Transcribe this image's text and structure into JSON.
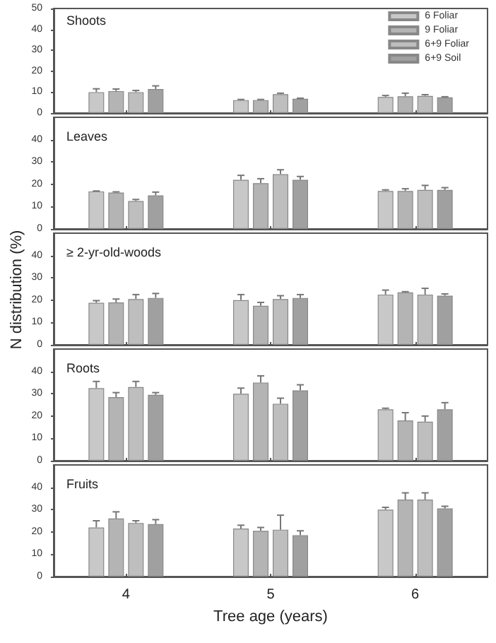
{
  "chart_data": [
    {
      "type": "bar",
      "title": "Shoots",
      "categories": [
        "4",
        "5",
        "6"
      ],
      "ylim": [
        0,
        50
      ],
      "yticks": [
        0,
        10,
        20,
        30,
        40,
        50
      ],
      "legend": "top right",
      "tick_labels": "y",
      "series": [
        {
          "name": "6 Foliar",
          "color": "#c8c8c8",
          "values": [
            10,
            6.2,
            7.7
          ],
          "errors": [
            [
              10,
              11.6
            ],
            [
              6.2,
              6.5
            ],
            [
              7.7,
              8.4
            ]
          ]
        },
        {
          "name": "9 Foliar",
          "color": "#b4b4b4",
          "values": [
            10.5,
            6.2,
            8
          ],
          "errors": [
            [
              10.5,
              11.5
            ],
            [
              6.2,
              6.5
            ],
            [
              8,
              9.5
            ]
          ]
        },
        {
          "name": "6+9 Foliar",
          "color": "#bebebe",
          "values": [
            10,
            9,
            8.2
          ],
          "errors": [
            [
              10,
              10.8
            ],
            [
              9,
              9.5
            ],
            [
              8.2,
              8.8
            ]
          ]
        },
        {
          "name": "6+9 Soil",
          "color": "#a0a0a0",
          "values": [
            11.5,
            6.8,
            7.5
          ],
          "errors": [
            [
              11.5,
              13
            ],
            [
              6.8,
              7.1
            ],
            [
              7.5,
              7.8
            ]
          ]
        }
      ]
    },
    {
      "type": "bar",
      "title": "Leaves",
      "categories": [
        "4",
        "5",
        "6"
      ],
      "ylim": [
        0,
        50
      ],
      "yticks": [
        0,
        10,
        20,
        30,
        40
      ],
      "tick_labels": "y",
      "series": [
        {
          "color": "#c8c8c8",
          "values": [
            16.8,
            22,
            17
          ],
          "errors": [
            [
              16.8,
              17
            ],
            [
              22,
              24
            ],
            [
              17,
              17.5
            ]
          ]
        },
        {
          "color": "#b4b4b4",
          "values": [
            16.3,
            20.5,
            17
          ],
          "errors": [
            [
              16.3,
              16.6
            ],
            [
              20.5,
              22.5
            ],
            [
              17,
              18
            ]
          ]
        },
        {
          "color": "#bebebe",
          "values": [
            12.5,
            24.5,
            17.5
          ],
          "errors": [
            [
              12.5,
              13.2
            ],
            [
              24.5,
              26.5
            ],
            [
              17.5,
              19.5
            ]
          ]
        },
        {
          "color": "#a0a0a0",
          "values": [
            15,
            22,
            17.5
          ],
          "errors": [
            [
              15,
              16.5
            ],
            [
              22,
              23.5
            ],
            [
              17.5,
              18.5
            ]
          ]
        }
      ]
    },
    {
      "type": "bar",
      "title": "≥ 2-yr-old-woods",
      "ylabel": "N distribution (%)",
      "categories": [
        "4",
        "5",
        "6"
      ],
      "ylim": [
        0,
        50
      ],
      "yticks": [
        0,
        10,
        20,
        30,
        40
      ],
      "tick_labels": "y",
      "series": [
        {
          "color": "#c8c8c8",
          "values": [
            18.8,
            20,
            22.5
          ],
          "errors": [
            [
              18.8,
              19.8
            ],
            [
              20,
              22.5
            ],
            [
              22.5,
              24.5
            ]
          ]
        },
        {
          "color": "#b4b4b4",
          "values": [
            19,
            17.5,
            23.5
          ],
          "errors": [
            [
              19,
              20.5
            ],
            [
              17.5,
              19
            ],
            [
              23.5,
              23.8
            ]
          ]
        },
        {
          "color": "#bebebe",
          "values": [
            20.5,
            20.5,
            22.5
          ],
          "errors": [
            [
              20.5,
              22.5
            ],
            [
              20.5,
              22
            ],
            [
              22.5,
              25.3
            ]
          ]
        },
        {
          "color": "#a0a0a0",
          "values": [
            21,
            21,
            22
          ],
          "errors": [
            [
              21,
              23
            ],
            [
              21,
              22.5
            ],
            [
              22,
              22.8
            ]
          ]
        }
      ]
    },
    {
      "type": "bar",
      "title": "Roots",
      "categories": [
        "4",
        "5",
        "6"
      ],
      "ylim": [
        0,
        50
      ],
      "yticks": [
        0,
        10,
        20,
        30,
        40
      ],
      "tick_labels": "y",
      "series": [
        {
          "color": "#c8c8c8",
          "values": [
            32.5,
            30,
            23
          ],
          "errors": [
            [
              32.5,
              35.5
            ],
            [
              30,
              32.5
            ],
            [
              23,
              23.5
            ]
          ]
        },
        {
          "color": "#b4b4b4",
          "values": [
            28.5,
            35,
            18
          ],
          "errors": [
            [
              28.5,
              30.5
            ],
            [
              35,
              38
            ],
            [
              18,
              21.5
            ]
          ]
        },
        {
          "color": "#bebebe",
          "values": [
            33,
            25.5,
            17.5
          ],
          "errors": [
            [
              33,
              35.5
            ],
            [
              25.5,
              28
            ],
            [
              17.5,
              20
            ]
          ]
        },
        {
          "color": "#a0a0a0",
          "values": [
            29.5,
            31.5,
            23
          ],
          "errors": [
            [
              29.5,
              30.5
            ],
            [
              31.5,
              34
            ],
            [
              23,
              26
            ]
          ]
        }
      ]
    },
    {
      "type": "bar",
      "title": "Fruits",
      "xlabel": "Tree age (years)",
      "categories": [
        "4",
        "5",
        "6"
      ],
      "ylim": [
        0,
        50
      ],
      "yticks": [
        0,
        10,
        20,
        30,
        40
      ],
      "series": [
        {
          "color": "#c8c8c8",
          "values": [
            22,
            21.5,
            30
          ],
          "errors": [
            [
              22,
              25
            ],
            [
              21.5,
              23
            ],
            [
              30,
              31
            ]
          ]
        },
        {
          "color": "#b4b4b4",
          "values": [
            26,
            20.5,
            34.5
          ],
          "errors": [
            [
              26,
              29
            ],
            [
              20.5,
              22
            ],
            [
              34.5,
              37.5
            ]
          ]
        },
        {
          "color": "#bebebe",
          "values": [
            24,
            21,
            34.5
          ],
          "errors": [
            [
              24,
              25
            ],
            [
              21,
              27.5
            ],
            [
              34.5,
              37.5
            ]
          ]
        },
        {
          "color": "#a0a0a0",
          "values": [
            23.5,
            18.5,
            30.5
          ],
          "errors": [
            [
              23.5,
              25.5
            ],
            [
              18.5,
              20.5
            ],
            [
              30.5,
              31.5
            ]
          ]
        }
      ]
    }
  ]
}
